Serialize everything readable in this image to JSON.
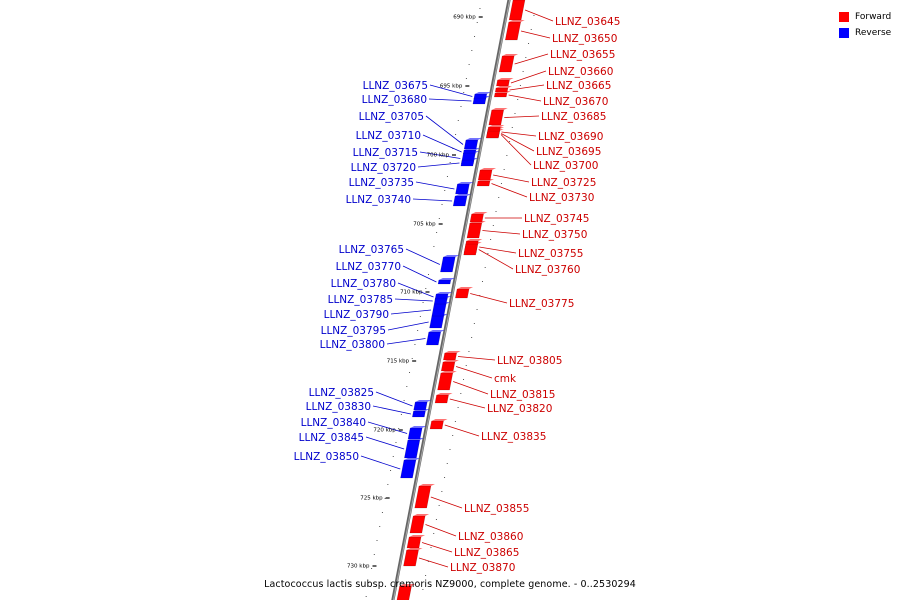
{
  "colors": {
    "forward": "#ff0000",
    "reverse": "#0000ff",
    "forward_label": "#cc0000",
    "reverse_label": "#0000cc",
    "backbone": "#666666"
  },
  "legend": {
    "forward": "Forward",
    "reverse": "Reverse"
  },
  "caption": "Lactococcus lactis subsp. cremoris NZ9000, complete genome. - 0..2530294",
  "scale_markers": [
    "690 kbp",
    "695 kbp",
    "700 kbp",
    "705 kbp",
    "710 kbp",
    "715 kbp",
    "720 kbp",
    "725 kbp",
    "730 kbp"
  ],
  "forward_genes": [
    "LLNZ_03645",
    "LLNZ_03650",
    "LLNZ_03655",
    "LLNZ_03660",
    "LLNZ_03665",
    "LLNZ_03670",
    "LLNZ_03685",
    "LLNZ_03690",
    "LLNZ_03695",
    "LLNZ_03700",
    "LLNZ_03725",
    "LLNZ_03730",
    "LLNZ_03745",
    "LLNZ_03750",
    "LLNZ_03755",
    "LLNZ_03760",
    "LLNZ_03775",
    "LLNZ_03805",
    "cmk",
    "LLNZ_03815",
    "LLNZ_03820",
    "LLNZ_03835",
    "LLNZ_03855",
    "LLNZ_03860",
    "LLNZ_03865",
    "LLNZ_03870"
  ],
  "reverse_genes": [
    "LLNZ_03675",
    "LLNZ_03680",
    "LLNZ_03705",
    "LLNZ_03710",
    "LLNZ_03715",
    "LLNZ_03720",
    "LLNZ_03735",
    "LLNZ_03740",
    "LLNZ_03765",
    "LLNZ_03770",
    "LLNZ_03780",
    "LLNZ_03785",
    "LLNZ_03790",
    "LLNZ_03795",
    "LLNZ_03800",
    "LLNZ_03825",
    "LLNZ_03830",
    "LLNZ_03840",
    "LLNZ_03845",
    "LLNZ_03850"
  ]
}
